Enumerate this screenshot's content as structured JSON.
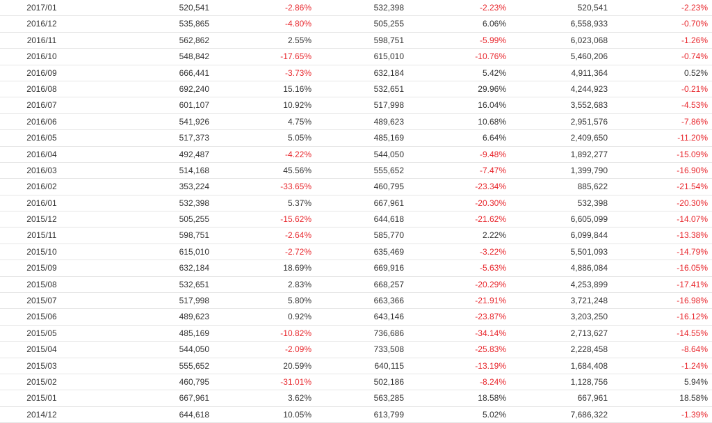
{
  "colors": {
    "negative": "#e8262c",
    "positive": "#333333"
  },
  "rows": [
    [
      "2017/01",
      "520,541",
      "-2.86%",
      "532,398",
      "-2.23%",
      "520,541",
      "-2.23%"
    ],
    [
      "2016/12",
      "535,865",
      "-4.80%",
      "505,255",
      "6.06%",
      "6,558,933",
      "-0.70%"
    ],
    [
      "2016/11",
      "562,862",
      "2.55%",
      "598,751",
      "-5.99%",
      "6,023,068",
      "-1.26%"
    ],
    [
      "2016/10",
      "548,842",
      "-17.65%",
      "615,010",
      "-10.76%",
      "5,460,206",
      "-0.74%"
    ],
    [
      "2016/09",
      "666,441",
      "-3.73%",
      "632,184",
      "5.42%",
      "4,911,364",
      "0.52%"
    ],
    [
      "2016/08",
      "692,240",
      "15.16%",
      "532,651",
      "29.96%",
      "4,244,923",
      "-0.21%"
    ],
    [
      "2016/07",
      "601,107",
      "10.92%",
      "517,998",
      "16.04%",
      "3,552,683",
      "-4.53%"
    ],
    [
      "2016/06",
      "541,926",
      "4.75%",
      "489,623",
      "10.68%",
      "2,951,576",
      "-7.86%"
    ],
    [
      "2016/05",
      "517,373",
      "5.05%",
      "485,169",
      "6.64%",
      "2,409,650",
      "-11.20%"
    ],
    [
      "2016/04",
      "492,487",
      "-4.22%",
      "544,050",
      "-9.48%",
      "1,892,277",
      "-15.09%"
    ],
    [
      "2016/03",
      "514,168",
      "45.56%",
      "555,652",
      "-7.47%",
      "1,399,790",
      "-16.90%"
    ],
    [
      "2016/02",
      "353,224",
      "-33.65%",
      "460,795",
      "-23.34%",
      "885,622",
      "-21.54%"
    ],
    [
      "2016/01",
      "532,398",
      "5.37%",
      "667,961",
      "-20.30%",
      "532,398",
      "-20.30%"
    ],
    [
      "2015/12",
      "505,255",
      "-15.62%",
      "644,618",
      "-21.62%",
      "6,605,099",
      "-14.07%"
    ],
    [
      "2015/11",
      "598,751",
      "-2.64%",
      "585,770",
      "2.22%",
      "6,099,844",
      "-13.38%"
    ],
    [
      "2015/10",
      "615,010",
      "-2.72%",
      "635,469",
      "-3.22%",
      "5,501,093",
      "-14.79%"
    ],
    [
      "2015/09",
      "632,184",
      "18.69%",
      "669,916",
      "-5.63%",
      "4,886,084",
      "-16.05%"
    ],
    [
      "2015/08",
      "532,651",
      "2.83%",
      "668,257",
      "-20.29%",
      "4,253,899",
      "-17.41%"
    ],
    [
      "2015/07",
      "517,998",
      "5.80%",
      "663,366",
      "-21.91%",
      "3,721,248",
      "-16.98%"
    ],
    [
      "2015/06",
      "489,623",
      "0.92%",
      "643,146",
      "-23.87%",
      "3,203,250",
      "-16.12%"
    ],
    [
      "2015/05",
      "485,169",
      "-10.82%",
      "736,686",
      "-34.14%",
      "2,713,627",
      "-14.55%"
    ],
    [
      "2015/04",
      "544,050",
      "-2.09%",
      "733,508",
      "-25.83%",
      "2,228,458",
      "-8.64%"
    ],
    [
      "2015/03",
      "555,652",
      "20.59%",
      "640,115",
      "-13.19%",
      "1,684,408",
      "-1.24%"
    ],
    [
      "2015/02",
      "460,795",
      "-31.01%",
      "502,186",
      "-8.24%",
      "1,128,756",
      "5.94%"
    ],
    [
      "2015/01",
      "667,961",
      "3.62%",
      "563,285",
      "18.58%",
      "667,961",
      "18.58%"
    ],
    [
      "2014/12",
      "644,618",
      "10.05%",
      "613,799",
      "5.02%",
      "7,686,322",
      "-1.39%"
    ]
  ]
}
